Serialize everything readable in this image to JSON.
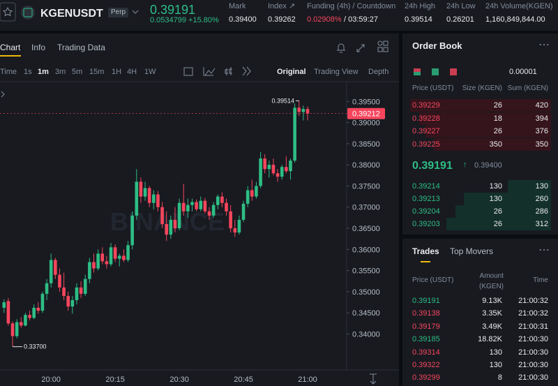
{
  "header": {
    "symbol": "KGENUSDT",
    "badge": "Perp",
    "price": "0.39191",
    "change": "0.0534799 +15.80%",
    "stats": [
      {
        "label": "Mark",
        "value": "0.39400"
      },
      {
        "label": "Index ↗",
        "value": "0.39262"
      },
      {
        "label": "Funding (4h) / Countdown",
        "value": "0.02908%",
        "extra": "/ 03:59:27"
      },
      {
        "label": "24h High",
        "value": "0.39514"
      },
      {
        "label": "24h Low",
        "value": "0.26201"
      },
      {
        "label": "24h Volume(KGEN)",
        "value": "1,160,849,844.00"
      }
    ]
  },
  "tabs": [
    "Chart",
    "Info",
    "Trading Data"
  ],
  "intervals": [
    "Time",
    "1s",
    "1m",
    "3m",
    "5m",
    "15m",
    "1H",
    "4H",
    "1W"
  ],
  "views": [
    "Original",
    "Trading View",
    "Depth"
  ],
  "chart": {
    "type": "candlestick",
    "up_color": "#2ebd85",
    "down_color": "#f6465d",
    "watermark": "BINANCE",
    "ylim": [
      0.3315,
      0.3995
    ],
    "yticks": [
      {
        "value": 0.395,
        "label": "0.39500"
      },
      {
        "value": 0.39,
        "label": "0.39000"
      },
      {
        "value": 0.385,
        "label": "0.38500"
      },
      {
        "value": 0.38,
        "label": "0.38000"
      },
      {
        "value": 0.375,
        "label": "0.37500"
      },
      {
        "value": 0.37,
        "label": "0.37000"
      },
      {
        "value": 0.365,
        "label": "0.36500"
      },
      {
        "value": 0.36,
        "label": "0.36000"
      },
      {
        "value": 0.355,
        "label": "0.35500"
      },
      {
        "value": 0.35,
        "label": "0.35000"
      },
      {
        "value": 0.345,
        "label": "0.34500"
      },
      {
        "value": 0.34,
        "label": "0.34000"
      }
    ],
    "xticks": [
      "20:00",
      "20:15",
      "20:30",
      "20:45",
      "21:00"
    ],
    "high_label": {
      "value": 0.39514,
      "label": "0.39514"
    },
    "low_label": {
      "value": 0.337,
      "label": "0.33700"
    },
    "last_price": {
      "value": 0.39212,
      "label": "0.39212"
    },
    "candles": [
      [
        0.3462,
        0.3482,
        0.345,
        0.3475
      ],
      [
        0.3478,
        0.3485,
        0.342,
        0.3425
      ],
      [
        0.3425,
        0.343,
        0.337,
        0.3395
      ],
      [
        0.3395,
        0.3435,
        0.339,
        0.3428
      ],
      [
        0.3428,
        0.344,
        0.3415,
        0.342
      ],
      [
        0.342,
        0.345,
        0.3418,
        0.3445
      ],
      [
        0.3445,
        0.3455,
        0.3432,
        0.3438
      ],
      [
        0.3438,
        0.347,
        0.3435,
        0.3462
      ],
      [
        0.3462,
        0.3475,
        0.3448,
        0.3455
      ],
      [
        0.3455,
        0.35,
        0.345,
        0.3495
      ],
      [
        0.3495,
        0.353,
        0.348,
        0.352
      ],
      [
        0.352,
        0.359,
        0.351,
        0.3575
      ],
      [
        0.3575,
        0.358,
        0.353,
        0.354
      ],
      [
        0.354,
        0.3555,
        0.35,
        0.351
      ],
      [
        0.351,
        0.3545,
        0.348,
        0.349
      ],
      [
        0.349,
        0.35,
        0.3455,
        0.3465
      ],
      [
        0.3465,
        0.349,
        0.3448,
        0.348
      ],
      [
        0.348,
        0.352,
        0.347,
        0.351
      ],
      [
        0.351,
        0.3525,
        0.3485,
        0.3495
      ],
      [
        0.3495,
        0.354,
        0.349,
        0.353
      ],
      [
        0.353,
        0.358,
        0.352,
        0.357
      ],
      [
        0.357,
        0.359,
        0.3545,
        0.3555
      ],
      [
        0.3555,
        0.36,
        0.355,
        0.359
      ],
      [
        0.359,
        0.3605,
        0.3565,
        0.3572
      ],
      [
        0.3572,
        0.3585,
        0.3555,
        0.3565
      ],
      [
        0.3565,
        0.3615,
        0.356,
        0.3605
      ],
      [
        0.3605,
        0.3612,
        0.357,
        0.3578
      ],
      [
        0.3578,
        0.359,
        0.356,
        0.3585
      ],
      [
        0.3585,
        0.36,
        0.357,
        0.3575
      ],
      [
        0.3575,
        0.362,
        0.357,
        0.361
      ],
      [
        0.361,
        0.369,
        0.36,
        0.368
      ],
      [
        0.368,
        0.379,
        0.367,
        0.376
      ],
      [
        0.376,
        0.377,
        0.371,
        0.3725
      ],
      [
        0.3725,
        0.376,
        0.3715,
        0.3745
      ],
      [
        0.3745,
        0.375,
        0.37,
        0.371
      ],
      [
        0.371,
        0.374,
        0.3695,
        0.373
      ],
      [
        0.373,
        0.3738,
        0.369,
        0.37
      ],
      [
        0.37,
        0.3712,
        0.365,
        0.366
      ],
      [
        0.366,
        0.369,
        0.362,
        0.3635
      ],
      [
        0.3635,
        0.368,
        0.3625,
        0.367
      ],
      [
        0.367,
        0.37,
        0.364,
        0.365
      ],
      [
        0.365,
        0.372,
        0.3645,
        0.371
      ],
      [
        0.371,
        0.3755,
        0.368,
        0.369
      ],
      [
        0.369,
        0.372,
        0.3675,
        0.3705
      ],
      [
        0.3705,
        0.372,
        0.369,
        0.3712
      ],
      [
        0.3712,
        0.3718,
        0.369,
        0.3695
      ],
      [
        0.3695,
        0.3725,
        0.369,
        0.3715
      ],
      [
        0.3715,
        0.3722,
        0.3685,
        0.369
      ],
      [
        0.369,
        0.37,
        0.367,
        0.368
      ],
      [
        0.368,
        0.3712,
        0.3675,
        0.3705
      ],
      [
        0.3705,
        0.373,
        0.3695,
        0.3725
      ],
      [
        0.3725,
        0.3735,
        0.37,
        0.371
      ],
      [
        0.371,
        0.372,
        0.368,
        0.369
      ],
      [
        0.369,
        0.3705,
        0.364,
        0.365
      ],
      [
        0.365,
        0.367,
        0.363,
        0.364
      ],
      [
        0.364,
        0.368,
        0.3635,
        0.367
      ],
      [
        0.367,
        0.3715,
        0.3665,
        0.3708
      ],
      [
        0.3708,
        0.375,
        0.37,
        0.374
      ],
      [
        0.374,
        0.3765,
        0.3715,
        0.3725
      ],
      [
        0.3725,
        0.376,
        0.372,
        0.375
      ],
      [
        0.375,
        0.383,
        0.3745,
        0.3815
      ],
      [
        0.3815,
        0.3825,
        0.378,
        0.379
      ],
      [
        0.379,
        0.381,
        0.377,
        0.38
      ],
      [
        0.38,
        0.3815,
        0.3775,
        0.378
      ],
      [
        0.378,
        0.379,
        0.376,
        0.3772
      ],
      [
        0.3772,
        0.38,
        0.3765,
        0.3795
      ],
      [
        0.3795,
        0.382,
        0.378,
        0.3785
      ],
      [
        0.3785,
        0.3815,
        0.3765,
        0.381
      ],
      [
        0.381,
        0.3945,
        0.3805,
        0.3935
      ],
      [
        0.3935,
        0.39514,
        0.3915,
        0.3925
      ],
      [
        0.3925,
        0.394,
        0.3905,
        0.3932
      ],
      [
        0.3932,
        0.3938,
        0.3905,
        0.39212
      ]
    ]
  },
  "order_book": {
    "title": "Order Book",
    "precision": "0.00001",
    "headers": [
      "Price (USDT)",
      "Size (KGEN)",
      "Sum (KGEN)"
    ],
    "asks": [
      [
        "0.39229",
        "26",
        "420"
      ],
      [
        "0.39228",
        "18",
        "394"
      ],
      [
        "0.39227",
        "26",
        "376"
      ],
      [
        "0.39225",
        "350",
        "350"
      ]
    ],
    "mid_price": "0.39191",
    "mark_price": "0.39400",
    "bids": [
      [
        "0.39214",
        "130",
        "130"
      ],
      [
        "0.39213",
        "130",
        "260"
      ],
      [
        "0.39204",
        "26",
        "286"
      ],
      [
        "0.39203",
        "26",
        "312"
      ]
    ]
  },
  "trades": {
    "tabs": [
      "Trades",
      "Top Movers"
    ],
    "headers": [
      "Price (USDT)",
      "Amount (KGEN)",
      "Time"
    ],
    "rows": [
      {
        "price": "0.39191",
        "amount": "9.13K",
        "time": "21:00:32",
        "color": "#2ebd85"
      },
      {
        "price": "0.39138",
        "amount": "3.35K",
        "time": "21:00:32",
        "color": "#f6465d"
      },
      {
        "price": "0.39179",
        "amount": "3.49K",
        "time": "21:00:31",
        "color": "#f6465d"
      },
      {
        "price": "0.39185",
        "amount": "18.82K",
        "time": "21:00:30",
        "color": "#2ebd85"
      },
      {
        "price": "0.39314",
        "amount": "130",
        "time": "21:00:30",
        "color": "#f6465d"
      },
      {
        "price": "0.39322",
        "amount": "130",
        "time": "21:00:30",
        "color": "#f6465d"
      },
      {
        "price": "0.39299",
        "amount": "8",
        "time": "21:00:30",
        "color": "#f6465d"
      }
    ]
  }
}
